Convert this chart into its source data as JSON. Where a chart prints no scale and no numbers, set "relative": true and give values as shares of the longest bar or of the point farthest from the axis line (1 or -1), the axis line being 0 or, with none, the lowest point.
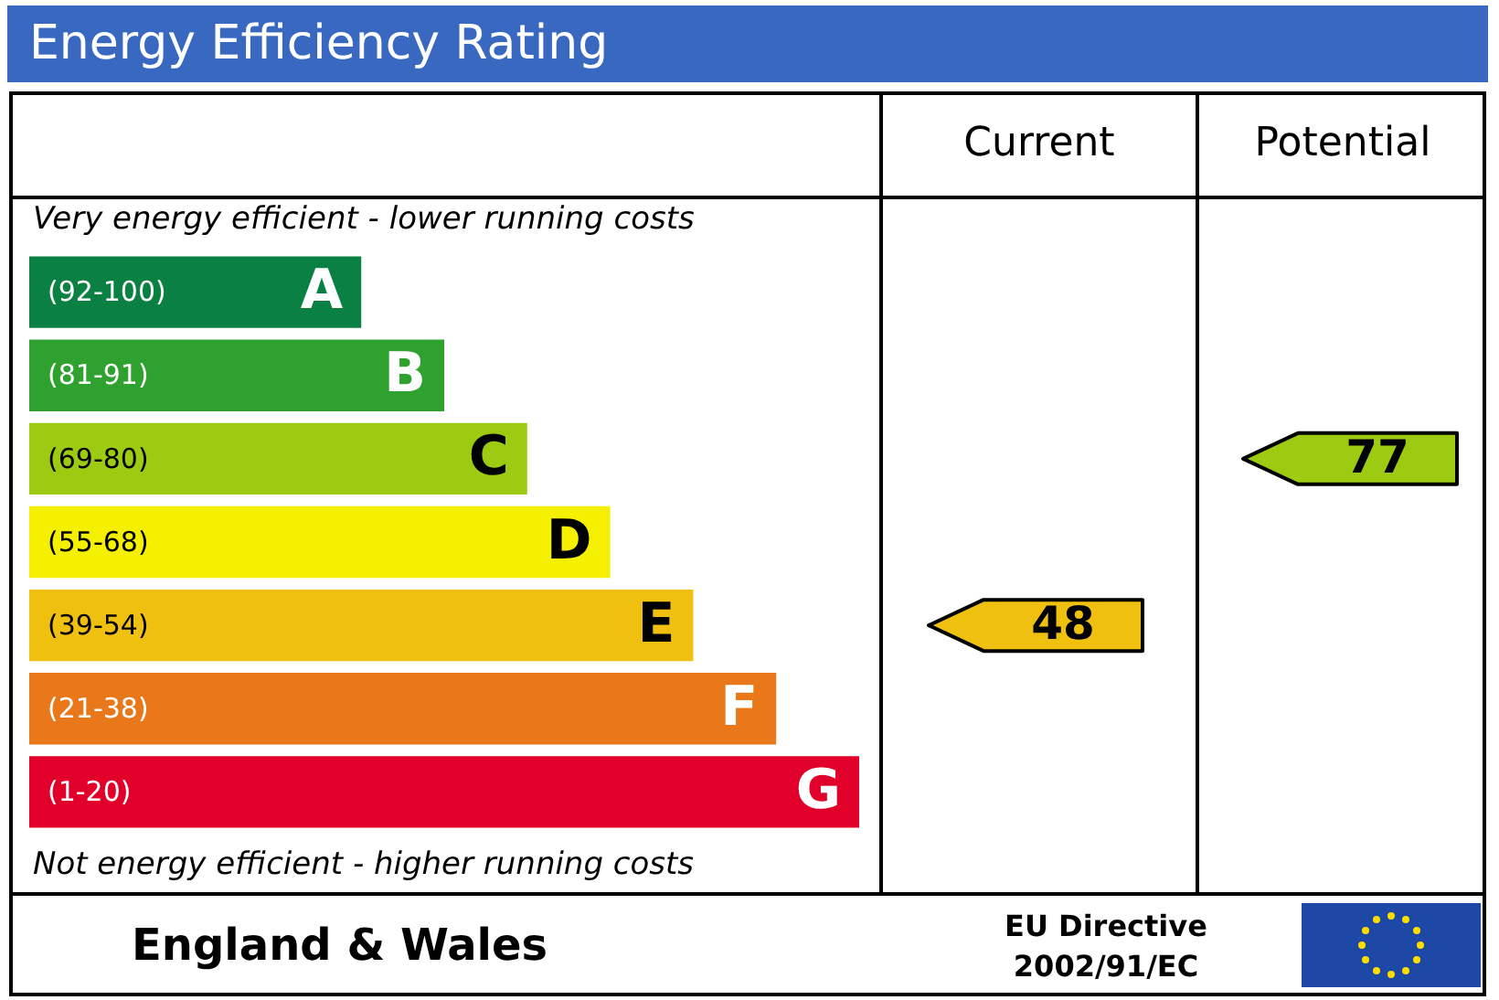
{
  "chart_data": {
    "type": "bar",
    "orientation": "horizontal",
    "relative": true,
    "title": "Energy Efficiency Rating",
    "categories": [
      "A",
      "B",
      "C",
      "D",
      "E",
      "F",
      "G"
    ],
    "values": [
      0.4,
      0.5,
      0.6,
      0.7,
      0.8,
      0.9,
      1
    ],
    "colors": [
      "#0b8043",
      "#2ea12e",
      "#9dcb12",
      "#f5f000",
      "#f0c010",
      "#e8781a",
      "#e0002a"
    ],
    "annotations": [
      "Very energy efficient - lower running costs",
      "Not energy efficient - higher running costs",
      "Current",
      "Potential",
      "England & Wales",
      "EU Directive 2002/91/EC",
      "48",
      "77",
      "(92-100)",
      "(81-91)",
      "(69-80)",
      "(55-68)",
      "(39-54)",
      "(21-38)",
      "(1-20)"
    ]
  }
}
